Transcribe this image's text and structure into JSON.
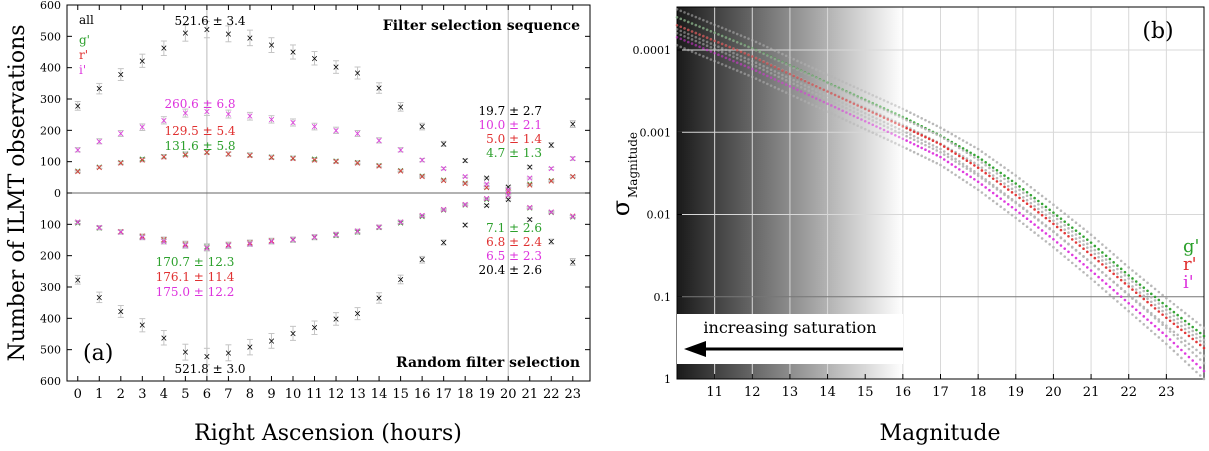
{
  "chart_data": [
    {
      "panel_label": "(a)",
      "type": "scatter",
      "xlabel": "Right Ascension (hours)",
      "ylabel": "Number of ILMT observations",
      "xlim": [
        -0.5,
        23.8
      ],
      "ylim": [
        -600,
        600
      ],
      "x_ticks": [
        0,
        1,
        2,
        3,
        4,
        5,
        6,
        7,
        8,
        9,
        10,
        11,
        12,
        13,
        14,
        15,
        16,
        17,
        18,
        19,
        20,
        21,
        22,
        23
      ],
      "y_ticks": [
        -600,
        -500,
        -400,
        -300,
        -200,
        -100,
        0,
        100,
        200,
        300,
        400,
        500,
        600
      ],
      "y_tick_labels": [
        "600",
        "500",
        "400",
        "300",
        "200",
        "100",
        "0",
        "100",
        "200",
        "300",
        "400",
        "500",
        "600"
      ],
      "grid": true,
      "legend": {
        "position": "top-left",
        "entries": [
          "all",
          "g'",
          "r'",
          "i'"
        ]
      },
      "upper_title": "Filter selection sequence",
      "lower_title": "Random filter selection",
      "x": [
        0,
        1,
        2,
        3,
        4,
        5,
        6,
        7,
        8,
        9,
        10,
        11,
        12,
        13,
        14,
        15,
        16,
        17,
        18,
        19,
        20,
        21,
        22,
        23
      ],
      "series": [
        {
          "name": "all",
          "color": "#000000",
          "upper": [
            278,
            333,
            378,
            422,
            462,
            510,
            521.6,
            508,
            495,
            472,
            450,
            430,
            402,
            383,
            335,
            275,
            212,
            157,
            103,
            48,
            19.7,
            83,
            153,
            220
          ],
          "lower": [
            -277,
            -333,
            -378,
            -422,
            -462,
            -508,
            -521.8,
            -510,
            -492,
            -472,
            -448,
            -430,
            -402,
            -385,
            -335,
            -276,
            -213,
            -158,
            -102,
            -40,
            -20.4,
            -85,
            -155,
            -220
          ]
        },
        {
          "name": "g'",
          "color": "#2ca02c",
          "upper": [
            70,
            83,
            97,
            108,
            117,
            125,
            131.6,
            125,
            122,
            115,
            112,
            108,
            102,
            98,
            88,
            72,
            55,
            42,
            32,
            18,
            4.7,
            28,
            40,
            53
          ],
          "lower": [
            -95,
            -112,
            -125,
            -140,
            -150,
            -165,
            -170.7,
            -168,
            -160,
            -155,
            -150,
            -142,
            -135,
            -125,
            -110,
            -95,
            -75,
            -55,
            -38,
            -20,
            -7.1,
            -48,
            -62,
            -76
          ]
        },
        {
          "name": "r'",
          "color": "#e03030",
          "upper": [
            68,
            82,
            95,
            105,
            115,
            122,
            129.5,
            124,
            120,
            113,
            110,
            105,
            100,
            95,
            86,
            70,
            52,
            40,
            30,
            17,
            5.0,
            26,
            38,
            52
          ],
          "lower": [
            -93,
            -110,
            -123,
            -138,
            -148,
            -162,
            -176.1,
            -165,
            -158,
            -152,
            -148,
            -140,
            -133,
            -122,
            -108,
            -92,
            -72,
            -52,
            -36,
            -18,
            -6.8,
            -46,
            -60,
            -74
          ]
        },
        {
          "name": "i'",
          "color": "#dd33dd",
          "upper": [
            138,
            165,
            190,
            210,
            232,
            255,
            260.6,
            252,
            245,
            235,
            225,
            212,
            200,
            190,
            168,
            138,
            105,
            78,
            52,
            28,
            10.0,
            48,
            78,
            110
          ],
          "lower": [
            -93,
            -110,
            -125,
            -142,
            -155,
            -168,
            -175.0,
            -168,
            -162,
            -155,
            -148,
            -140,
            -132,
            -122,
            -108,
            -92,
            -72,
            -52,
            -36,
            -18,
            -6.5,
            -47,
            -60,
            -75
          ]
        }
      ],
      "annotations": {
        "upper_peak": "521.6 ± 3.4",
        "lower_peak": "521.8 ± 3.0",
        "upper_mid_i": "260.6 ± 6.8",
        "upper_mid_r": "129.5 ± 5.4",
        "upper_mid_g": "131.6 ± 5.8",
        "upper_min_all": "19.7 ± 2.7",
        "upper_min_i": "10.0 ± 2.1",
        "upper_min_r": "5.0 ± 1.4",
        "upper_min_g": "4.7 ± 1.3",
        "lower_mid_g": "170.7 ± 12.3",
        "lower_mid_r": "176.1 ± 11.4",
        "lower_mid_i": "175.0 ± 12.2",
        "lower_min_g": "7.1 ± 2.6",
        "lower_min_r": "6.8 ± 2.4",
        "lower_min_i": "6.5 ± 2.3",
        "lower_min_all": "20.4 ± 2.6"
      }
    },
    {
      "panel_label": "(b)",
      "type": "line",
      "xlabel": "Magnitude",
      "ylabel": "σ",
      "ylabel_subscript": "Magnitude",
      "y_scale": "log-inverted",
      "xlim": [
        10,
        24
      ],
      "ylim": [
        3e-05,
        1
      ],
      "x_ticks": [
        11,
        12,
        13,
        14,
        15,
        16,
        17,
        18,
        19,
        20,
        21,
        22,
        23
      ],
      "y_ticks": [
        0.0001,
        0.001,
        0.01,
        0.1,
        1
      ],
      "y_tick_labels": [
        "0.0001",
        "0.001",
        "0.01",
        "0.1",
        "1"
      ],
      "reference_line": 0.1,
      "saturation_label": "increasing saturation",
      "saturation_limit": 16,
      "legend": {
        "position": "right",
        "entries": [
          "g'",
          "r'",
          "i'"
        ]
      },
      "series": [
        {
          "name": "g'",
          "color": "#2ca02c",
          "x": [
            10,
            12,
            14,
            16,
            17,
            18,
            19,
            20,
            21,
            22,
            23,
            24
          ],
          "y": [
            4e-05,
            9.5e-05,
            0.00025,
            0.00065,
            0.0011,
            0.002,
            0.0042,
            0.0095,
            0.022,
            0.055,
            0.13,
            0.3
          ]
        },
        {
          "name": "r'",
          "color": "#e03030",
          "x": [
            10,
            12,
            14,
            16,
            17,
            18,
            19,
            20,
            21,
            22,
            23,
            24
          ],
          "y": [
            5e-05,
            0.00012,
            0.00032,
            0.00085,
            0.0014,
            0.0027,
            0.0058,
            0.013,
            0.031,
            0.075,
            0.18,
            0.42
          ]
        },
        {
          "name": "i'",
          "color": "#dd33dd",
          "x": [
            10,
            12,
            14,
            16,
            17,
            18,
            19,
            20,
            21,
            22,
            23,
            24
          ],
          "y": [
            7e-05,
            0.00017,
            0.00045,
            0.0012,
            0.002,
            0.004,
            0.0088,
            0.02,
            0.048,
            0.12,
            0.3,
            0.8
          ]
        }
      ]
    }
  ]
}
